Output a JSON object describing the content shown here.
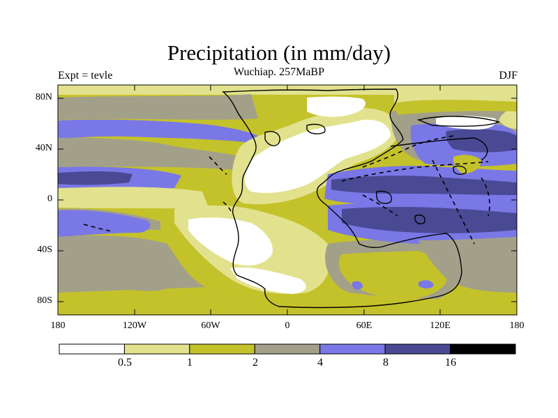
{
  "figure": {
    "title": "Precipitation (in mm/day)",
    "subtitle": "Wuchiap. 257MaBP",
    "left_label": "Expt = tevle",
    "right_label": "DJF"
  },
  "axes": {
    "y_ticks": [
      "80N",
      "40N",
      "0",
      "40S",
      "80S"
    ],
    "x_ticks": [
      "180",
      "120W",
      "60W",
      "0",
      "60E",
      "120E",
      "180"
    ]
  },
  "colorbar": {
    "labels": [
      "0.5",
      "1",
      "2",
      "4",
      "8",
      "16"
    ],
    "colors": [
      "#ffffff",
      "#e2e28e",
      "#c4c22a",
      "#a3a08a",
      "#7a78e6",
      "#4a4994",
      "#000000"
    ]
  },
  "palette": {
    "white": "#ffffff",
    "lightyellow": "#e2e28e",
    "olive": "#c4c22a",
    "gray": "#a3a08a",
    "blue": "#7a78e6",
    "darkblue": "#4a4994"
  }
}
